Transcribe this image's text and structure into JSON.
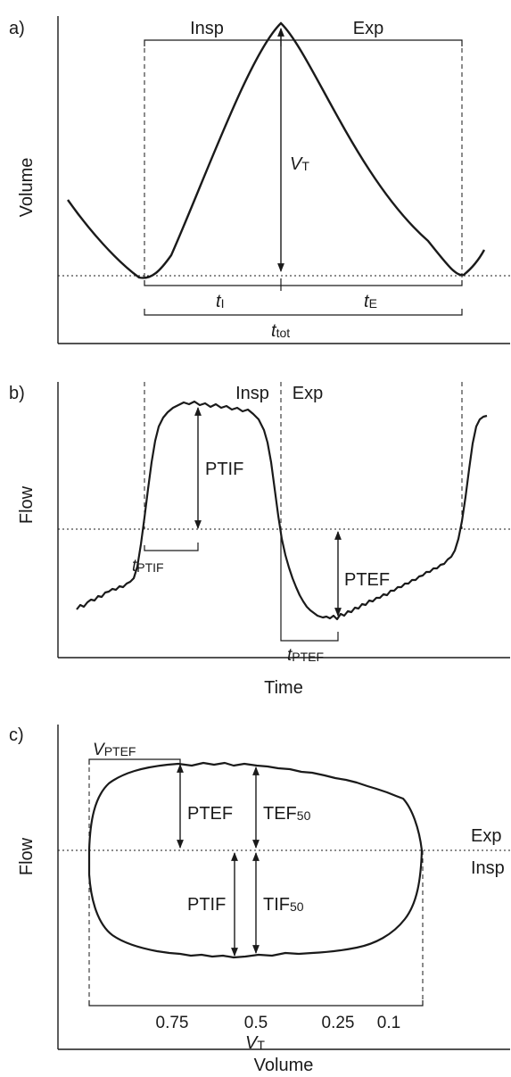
{
  "panel_a": {
    "label": "a)",
    "ylabel": "Volume",
    "phase_insp": "Insp",
    "phase_exp": "Exp",
    "vt": {
      "main": "V",
      "sub": "T"
    },
    "ti": {
      "main": "t",
      "sub": "I"
    },
    "te": {
      "main": "t",
      "sub": "E"
    },
    "ttot": {
      "main": "t",
      "sub": "tot"
    }
  },
  "panel_b": {
    "label": "b)",
    "ylabel": "Flow",
    "xlabel": "Time",
    "phase_insp": "Insp",
    "phase_exp": "Exp",
    "ptif": "PTIF",
    "ptef": "PTEF",
    "tptif": {
      "main": "t",
      "sub": "PTIF"
    },
    "tptef": {
      "main": "t",
      "sub": "PTEF"
    }
  },
  "panel_c": {
    "label": "c)",
    "ylabel": "Flow",
    "xlabel": "Volume",
    "side_exp": "Exp",
    "side_insp": "Insp",
    "vptef": {
      "main": "V",
      "sub": "PTEF"
    },
    "ptef": "PTEF",
    "ptif": "PTIF",
    "tef50": {
      "main": "TEF",
      "sub": "50"
    },
    "tif50": {
      "main": "TIF",
      "sub": "50"
    },
    "vt": {
      "main": "V",
      "sub": "T"
    },
    "ticks": [
      "0.75",
      "0.5",
      "0.25",
      "0.1"
    ]
  }
}
